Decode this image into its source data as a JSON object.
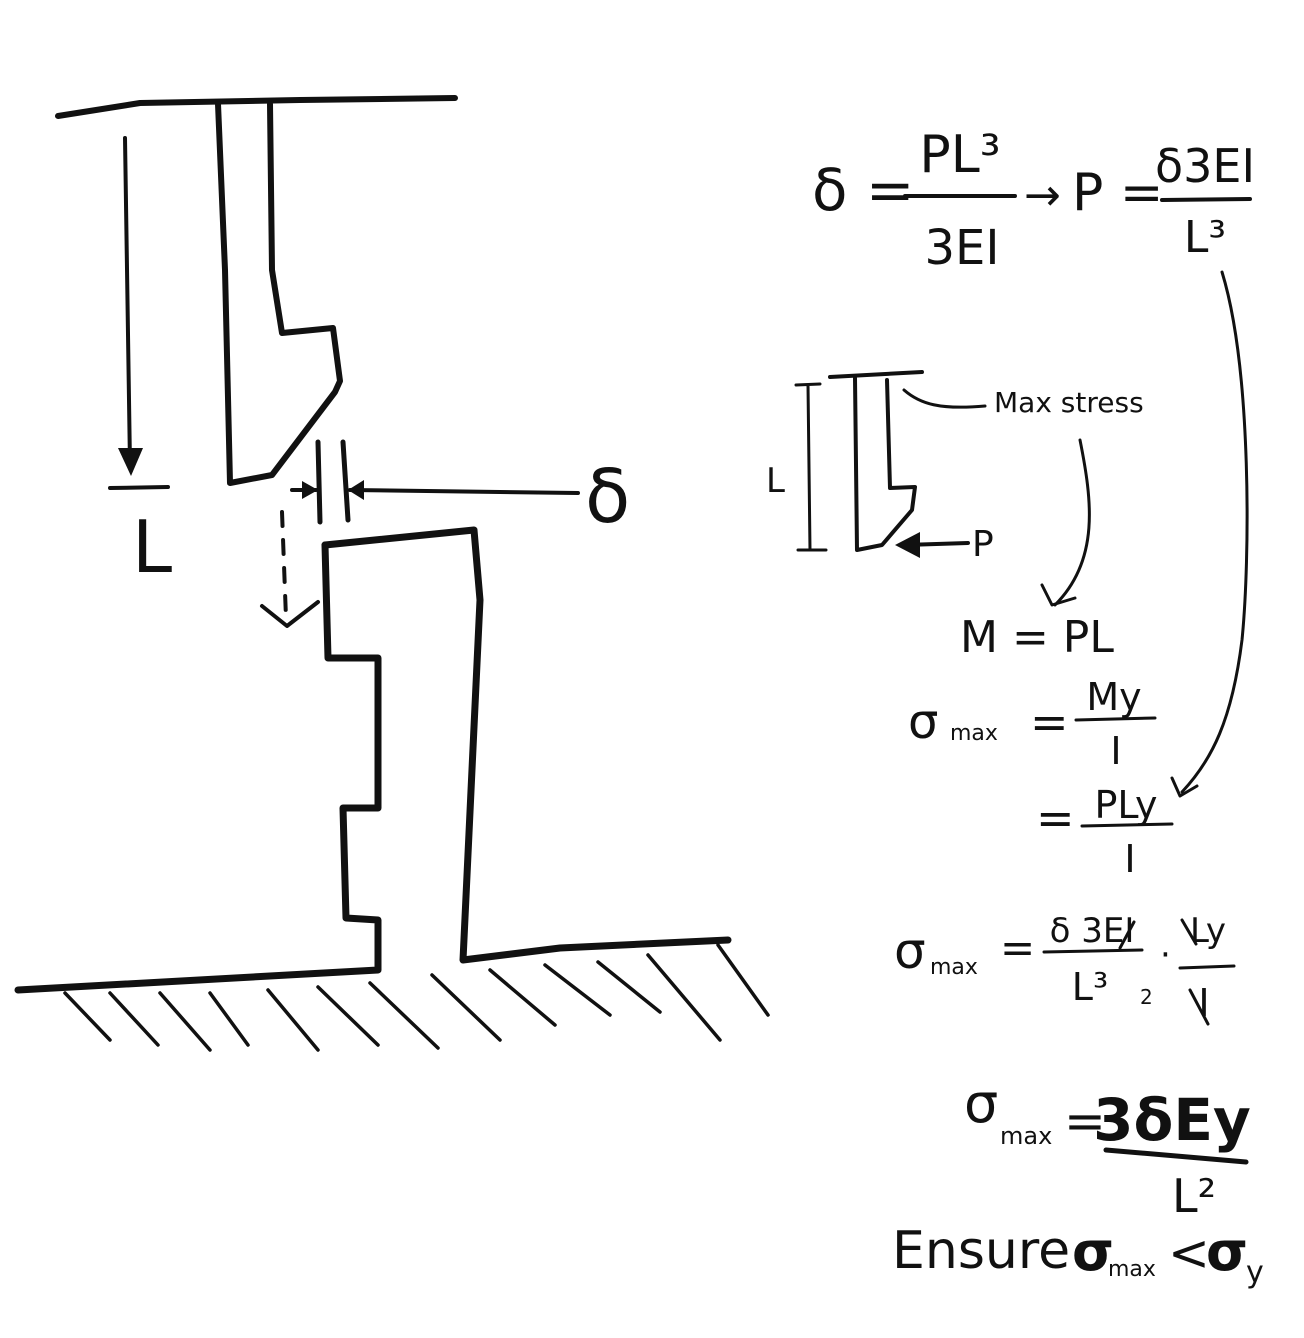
{
  "sketch": {
    "length_label": "L",
    "deflection_label": "δ",
    "detail": {
      "length_label": "L",
      "load_label": "P",
      "max_stress_label": "Max stress"
    }
  },
  "equations": {
    "deflection": {
      "lhs": "δ =",
      "num": "PL³",
      "den": "3EI",
      "arrow": "→",
      "p_lhs": "P =",
      "p_num": "δ3EI",
      "p_den": "L³"
    },
    "moment": "M = PL",
    "sigma_1": {
      "lhs": "σ",
      "sub": "max",
      "eq": "=",
      "num": "My",
      "den": "I"
    },
    "sigma_2": {
      "eq": "=",
      "num": "PLy",
      "den": "I"
    },
    "sigma_3": {
      "lhs": "σ",
      "sub": "max",
      "eq": "=",
      "num1": "δ 3EI",
      "den1": "L³",
      "dot": "·",
      "num2": "Ly",
      "den2": "I",
      "cancel_mark": "2"
    },
    "sigma_final": {
      "lhs": "σ",
      "sub": "max",
      "eq": "=",
      "num": "3δEy",
      "den": "L²"
    },
    "ensure": {
      "word": "Ensure",
      "lhs": "σ",
      "lhs_sub": "max",
      "op": "<",
      "rhs": "σ",
      "rhs_sub": "y"
    }
  },
  "colors": {
    "ink": "#111111",
    "paper": "#ffffff"
  }
}
